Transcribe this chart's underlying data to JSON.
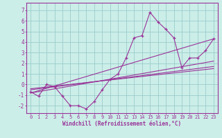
{
  "xlabel": "Windchill (Refroidissement éolien,°C)",
  "background_color": "#cceee8",
  "grid_color": "#99cccc",
  "line_color": "#993399",
  "xlim": [
    -0.5,
    23.5
  ],
  "ylim": [
    -2.7,
    7.7
  ],
  "yticks": [
    -2,
    -1,
    0,
    1,
    2,
    3,
    4,
    5,
    6,
    7
  ],
  "xticks": [
    0,
    1,
    2,
    3,
    4,
    5,
    6,
    7,
    8,
    9,
    10,
    11,
    12,
    13,
    14,
    15,
    16,
    17,
    18,
    19,
    20,
    21,
    22,
    23
  ],
  "data_y": [
    -0.7,
    -1.1,
    0.0,
    -0.2,
    -1.1,
    -2.0,
    -2.0,
    -2.3,
    -1.6,
    -0.5,
    0.5,
    1.0,
    2.5,
    4.4,
    4.6,
    6.8,
    5.9,
    5.2,
    4.4,
    1.6,
    2.5,
    2.5,
    3.2,
    4.3
  ],
  "trend1_x": [
    0,
    23
  ],
  "trend1_y": [
    -0.8,
    4.3
  ],
  "trend2_x": [
    0,
    23
  ],
  "trend2_y": [
    -0.5,
    1.7
  ],
  "trend3_x": [
    0,
    23
  ],
  "trend3_y": [
    -0.4,
    1.5
  ],
  "trend4_x": [
    0,
    23
  ],
  "trend4_y": [
    -0.8,
    2.2
  ]
}
